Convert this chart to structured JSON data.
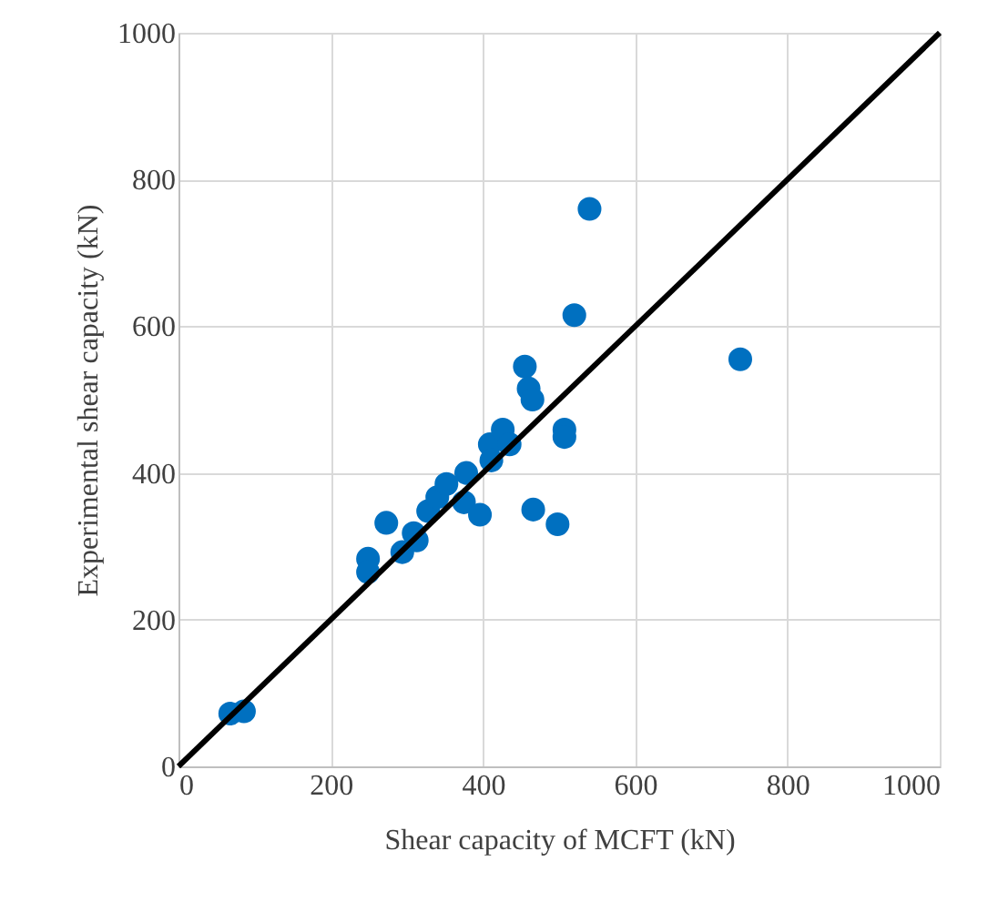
{
  "chart_data": {
    "type": "scatter",
    "xlabel": "Shear capacity of MCFT (kN)",
    "ylabel": "Experimental shear capacity (kN)",
    "xlim": [
      0,
      1000
    ],
    "ylim": [
      0,
      1000
    ],
    "xticks": [
      0,
      200,
      400,
      600,
      800,
      1000
    ],
    "yticks": [
      0,
      200,
      400,
      600,
      800,
      1000
    ],
    "grid": true,
    "marker": "circle",
    "series": [
      {
        "color": "#0070c0",
        "x": [
          68,
          86,
          249,
          249,
          273,
          294,
          309,
          313,
          328,
          340,
          352,
          378,
          375,
          396,
          409,
          411,
          426,
          435,
          466,
          498,
          507,
          507,
          455,
          460,
          465,
          520,
          540,
          738
        ],
        "values": [
          72,
          75,
          283,
          265,
          332,
          292,
          318,
          308,
          348,
          367,
          385,
          400,
          360,
          343,
          439,
          417,
          459,
          439,
          350,
          330,
          459,
          449,
          545,
          515,
          500,
          615,
          760,
          555
        ]
      },
      {
        "type": "line",
        "color": "#000000",
        "line_style": "solid",
        "marker": "none",
        "x": [
          0,
          1000
        ],
        "values": [
          0,
          1000
        ]
      }
    ]
  }
}
